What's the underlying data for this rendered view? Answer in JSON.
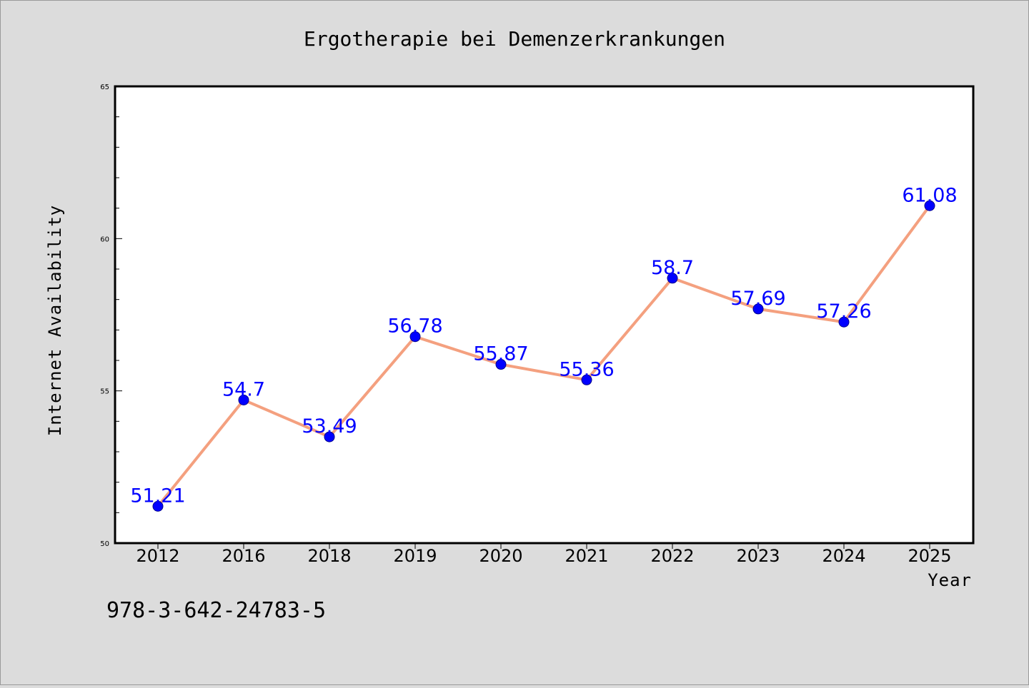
{
  "chart_data": {
    "type": "line",
    "title": "Ergotherapie bei Demenzerkrankungen",
    "xlabel": "Year",
    "ylabel": "Internet Availability",
    "categories": [
      "2012",
      "2016",
      "2018",
      "2019",
      "2020",
      "2021",
      "2022",
      "2023",
      "2024",
      "2025"
    ],
    "series": [
      {
        "values": [
          51.21,
          54.7,
          53.49,
          56.78,
          55.87,
          55.36,
          58.7,
          57.69,
          57.26,
          61.08
        ],
        "labels": [
          "51.21",
          "54.7",
          "53.49",
          "56.78",
          "55.87",
          "55.36",
          "58.7",
          "57.69",
          "57.26",
          "61.08"
        ],
        "line_color": "#f4a07f",
        "marker_color": "#0000ff"
      }
    ],
    "ylim": [
      50,
      65
    ],
    "yticks": [
      "50",
      "55",
      "60",
      "65"
    ],
    "grid": false,
    "legend": "none",
    "data_label_color": "#0000ff"
  },
  "footnote": "978-3-642-24783-5"
}
